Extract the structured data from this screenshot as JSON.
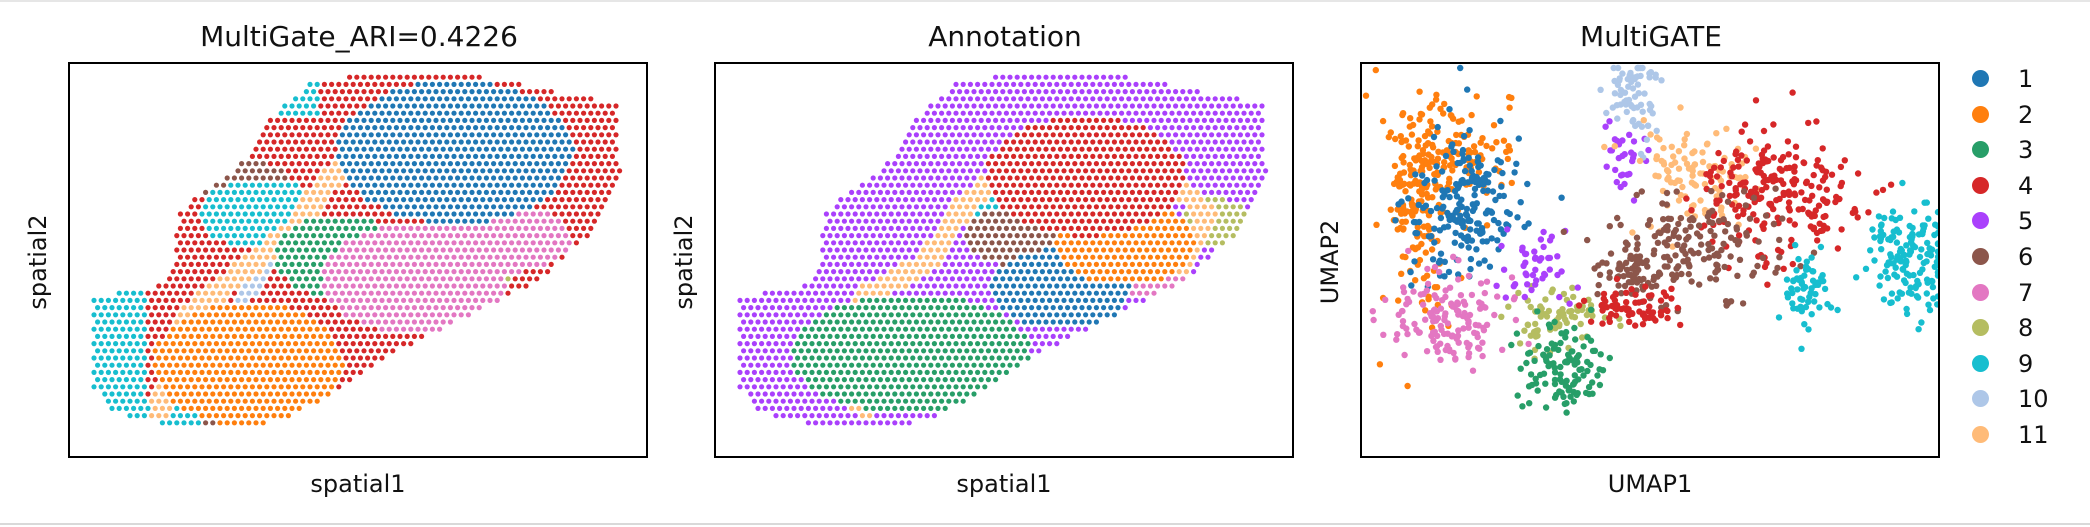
{
  "chart_data": [
    {
      "type": "scatter",
      "title": "MultiGate_ARI=0.4226",
      "xlabel": "spatial1",
      "ylabel": "spatial2",
      "ticks": "none",
      "color_key": "MultiGate clusters (legend 1–11)"
    },
    {
      "type": "scatter",
      "title": "Annotation",
      "xlabel": "spatial1",
      "ylabel": "spatial2",
      "ticks": "none"
    },
    {
      "type": "scatter",
      "title": "MultiGATE",
      "xlabel": "UMAP1",
      "ylabel": "UMAP2",
      "ticks": "none"
    }
  ],
  "legend": {
    "placement": "right",
    "items": [
      {
        "label": "1",
        "color": "#1f77b4"
      },
      {
        "label": "2",
        "color": "#ff7f0e"
      },
      {
        "label": "3",
        "color": "#279e68"
      },
      {
        "label": "4",
        "color": "#d62728"
      },
      {
        "label": "5",
        "color": "#aa40fc"
      },
      {
        "label": "6",
        "color": "#8c564b"
      },
      {
        "label": "7",
        "color": "#e377c2"
      },
      {
        "label": "8",
        "color": "#b5bd61"
      },
      {
        "label": "9",
        "color": "#17becf"
      },
      {
        "label": "10",
        "color": "#aec7e8"
      },
      {
        "label": "11",
        "color": "#ffbb78"
      }
    ]
  }
}
